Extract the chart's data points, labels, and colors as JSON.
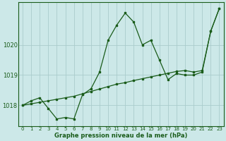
{
  "title": "Graphe pression niveau de la mer (hPa)",
  "bg_color": "#cce8e8",
  "grid_color": "#aacccc",
  "line_color": "#1a5c1a",
  "xlim": [
    -0.5,
    23.5
  ],
  "ylim": [
    1017.3,
    1021.4
  ],
  "yticks": [
    1018,
    1019,
    1020
  ],
  "xticks": [
    0,
    1,
    2,
    3,
    4,
    5,
    6,
    7,
    8,
    9,
    10,
    11,
    12,
    13,
    14,
    15,
    16,
    17,
    18,
    19,
    20,
    21,
    22,
    23
  ],
  "series1_x": [
    0,
    1,
    2,
    3,
    4,
    5,
    6,
    7,
    8,
    9,
    10,
    11,
    12,
    13,
    14,
    15,
    16,
    17,
    18,
    19,
    20,
    21,
    22,
    23
  ],
  "series1_y": [
    1018.0,
    1018.15,
    1018.25,
    1017.9,
    1017.55,
    1017.6,
    1017.55,
    1018.35,
    1018.55,
    1019.1,
    1020.15,
    1020.65,
    1021.05,
    1020.75,
    1020.0,
    1020.15,
    1019.5,
    1018.85,
    1019.05,
    1019.0,
    1019.0,
    1019.1,
    1020.45,
    1021.2
  ],
  "series2_x": [
    0,
    1,
    2,
    3,
    4,
    5,
    6,
    7,
    8,
    9,
    10,
    11,
    12,
    13,
    14,
    15,
    16,
    17,
    18,
    19,
    20,
    21,
    22,
    23
  ],
  "series2_y": [
    1018.0,
    1018.05,
    1018.1,
    1018.15,
    1018.2,
    1018.25,
    1018.3,
    1018.38,
    1018.46,
    1018.54,
    1018.62,
    1018.7,
    1018.75,
    1018.82,
    1018.88,
    1018.94,
    1019.0,
    1019.06,
    1019.12,
    1019.15,
    1019.1,
    1019.15,
    1020.45,
    1021.2
  ]
}
